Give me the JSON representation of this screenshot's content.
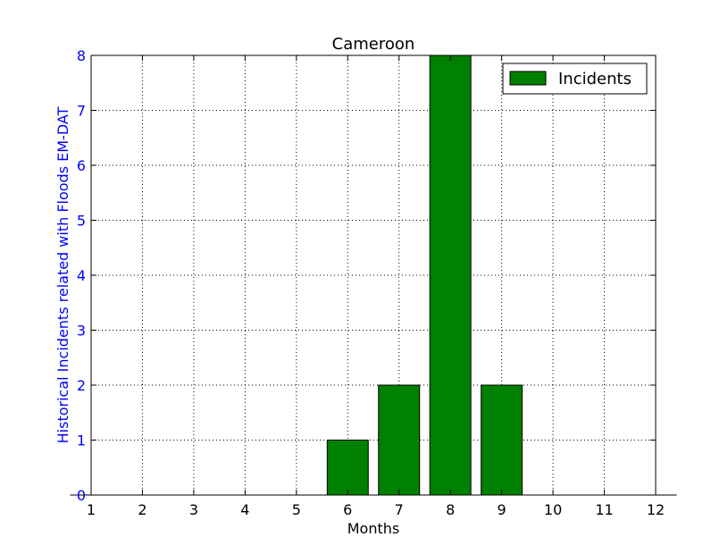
{
  "chart_data": {
    "type": "bar",
    "title": "Cameroon",
    "xlabel": "Months",
    "ylabel": "Historical Incidents related with Floods EM-DAT",
    "x": [
      1,
      2,
      3,
      4,
      5,
      6,
      7,
      8,
      9,
      10,
      11,
      12
    ],
    "series": [
      {
        "name": "Incidents",
        "values": [
          0,
          0,
          0,
          0,
          0,
          1,
          2,
          8,
          2,
          0,
          0,
          0
        ]
      }
    ],
    "xlim": [
      1,
      12
    ],
    "ylim": [
      0,
      8
    ],
    "xticks": [
      "1",
      "2",
      "3",
      "4",
      "5",
      "6",
      "7",
      "8",
      "9",
      "10",
      "11",
      "12"
    ],
    "yticks": [
      "0",
      "1",
      "2",
      "3",
      "4",
      "5",
      "6",
      "7",
      "8"
    ],
    "grid": true,
    "legend_position": "top-right",
    "colors": {
      "bar_fill": "#008000",
      "bar_edge": "#000000",
      "ylabel_color": "#0000ff",
      "ytick_color": "#0000ff"
    }
  }
}
